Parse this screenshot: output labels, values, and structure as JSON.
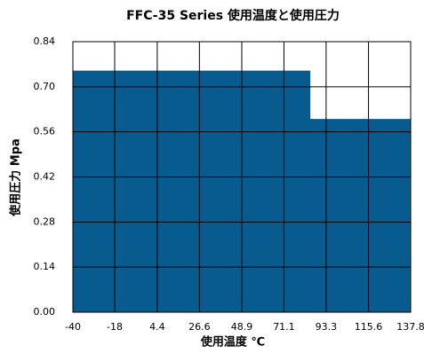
{
  "chart_data": {
    "type": "area",
    "title": "FFC-35 Series 使用温度と使用圧力",
    "x_label": "使用温度 ℃",
    "y_label": "使用圧力 Mpa",
    "x": [
      -40,
      85,
      85,
      137.8
    ],
    "series": [
      {
        "color": "#075b8f",
        "values": [
          0.75,
          0.75,
          0.6,
          0.6
        ]
      }
    ],
    "xlim": [
      -40,
      137.8
    ],
    "xticks": [
      -40,
      -18,
      4.4,
      26.6,
      48.9,
      71.1,
      93.3,
      115.6,
      137.8
    ],
    "ylim": [
      0,
      0.84
    ],
    "yticks": [
      {
        "value": 0,
        "label": "0.00"
      },
      0.14,
      0.28,
      0.42,
      0.56,
      {
        "value": 0.7,
        "label": "0.70"
      },
      0.84
    ],
    "grid": true
  }
}
